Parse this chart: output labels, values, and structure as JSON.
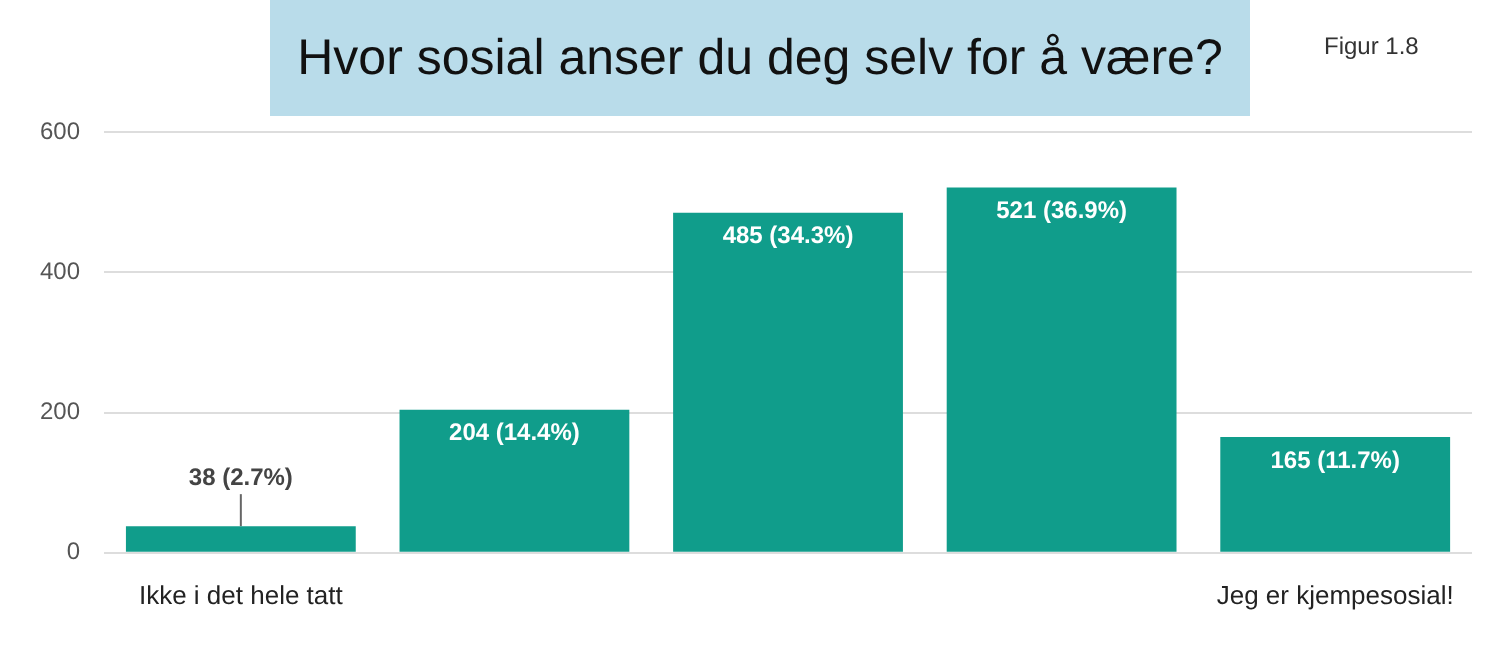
{
  "chart_data": {
    "type": "bar",
    "title": "Hvor sosial anser du deg selv for å være?",
    "annotations": [
      "Figur 1.8"
    ],
    "categories": [
      "Ikke i det hele tatt",
      null,
      null,
      null,
      "Jeg er kjempesosial!"
    ],
    "values": [
      38,
      204,
      485,
      521,
      165
    ],
    "value_labels": [
      "38 (2.7%)",
      "204 (14.4%)",
      "485 (34.3%)",
      "521 (36.9%)",
      "165 (11.7%)"
    ],
    "color": "#109d8b",
    "ylim": [
      0,
      600
    ],
    "yticks": [
      0,
      200,
      400,
      600
    ],
    "grid": "y",
    "legend": false
  }
}
